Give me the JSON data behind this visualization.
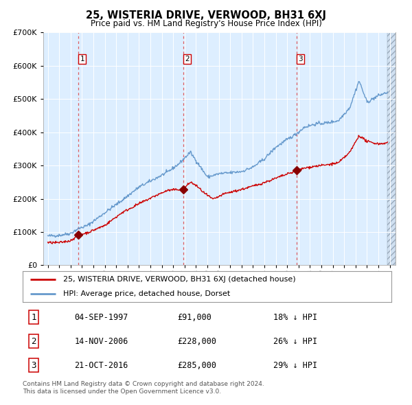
{
  "title": "25, WISTERIA DRIVE, VERWOOD, BH31 6XJ",
  "subtitle": "Price paid vs. HM Land Registry's House Price Index (HPI)",
  "legend_line1": "25, WISTERIA DRIVE, VERWOOD, BH31 6XJ (detached house)",
  "legend_line2": "HPI: Average price, detached house, Dorset",
  "table_rows": [
    [
      "1",
      "04-SEP-1997",
      "£91,000",
      "18% ↓ HPI"
    ],
    [
      "2",
      "14-NOV-2006",
      "£228,000",
      "26% ↓ HPI"
    ],
    [
      "3",
      "21-OCT-2016",
      "£285,000",
      "29% ↓ HPI"
    ]
  ],
  "footer_line1": "Contains HM Land Registry data © Crown copyright and database right 2024.",
  "footer_line2": "This data is licensed under the Open Government Licence v3.0.",
  "price_line_color": "#cc0000",
  "hpi_line_color": "#6699cc",
  "background_color": "#ddeeff",
  "grid_color": "#ffffff",
  "dashed_color": "#dd4444",
  "ylim": [
    0,
    700000
  ],
  "yticks": [
    0,
    100000,
    200000,
    300000,
    400000,
    500000,
    600000,
    700000
  ],
  "trans_years": [
    1997.67,
    2006.87,
    2016.8
  ],
  "trans_prices": [
    91000,
    228000,
    285000
  ],
  "hpi_key_years": [
    1995.0,
    1996.0,
    1997.0,
    1997.67,
    1998.5,
    2000.0,
    2001.5,
    2003.0,
    2004.5,
    2005.5,
    2006.5,
    2007.5,
    2008.2,
    2009.0,
    2010.0,
    2011.0,
    2012.0,
    2013.0,
    2014.0,
    2015.0,
    2016.0,
    2016.8,
    2017.5,
    2018.5,
    2019.5,
    2020.5,
    2021.5,
    2022.3,
    2023.0,
    2024.0,
    2024.8
  ],
  "hpi_key_vals": [
    88000,
    90000,
    96000,
    110000,
    120000,
    158000,
    195000,
    235000,
    262000,
    280000,
    305000,
    340000,
    305000,
    265000,
    275000,
    278000,
    282000,
    295000,
    320000,
    355000,
    378000,
    395000,
    415000,
    425000,
    428000,
    435000,
    475000,
    555000,
    490000,
    510000,
    520000
  ],
  "price_key_years": [
    1995.0,
    1996.0,
    1997.0,
    1997.67,
    1998.5,
    2000.0,
    2001.5,
    2003.0,
    2004.5,
    2005.5,
    2006.5,
    2006.87,
    2007.5,
    2008.0,
    2008.8,
    2009.5,
    2010.5,
    2012.0,
    2013.5,
    2014.5,
    2015.5,
    2016.5,
    2016.87,
    2017.5,
    2018.5,
    2019.5,
    2020.5,
    2021.5,
    2022.3,
    2023.0,
    2024.0,
    2024.8
  ],
  "price_key_vals": [
    68000,
    68000,
    74000,
    91000,
    98000,
    120000,
    158000,
    185000,
    210000,
    225000,
    228000,
    228000,
    250000,
    240000,
    215000,
    198000,
    215000,
    228000,
    243000,
    255000,
    268000,
    280000,
    285000,
    292000,
    298000,
    302000,
    308000,
    340000,
    390000,
    372000,
    365000,
    368000
  ]
}
